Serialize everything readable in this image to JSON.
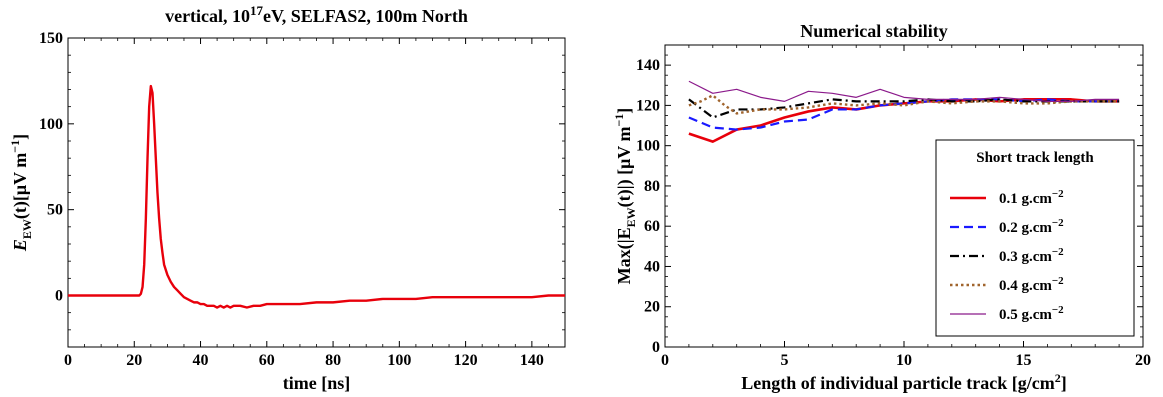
{
  "chart_data": [
    {
      "type": "line",
      "title": "vertical, 10",
      "title_sup": "17",
      "title_rest": "eV, SELFAS2, 100m North",
      "xlabel": "time [ns]",
      "ylabel_main": "E",
      "ylabel_sub": "EW",
      "ylabel_rest": "(t)[μV m",
      "ylabel_sup": "−1",
      "ylabel_end": "]",
      "xlim": [
        0,
        150
      ],
      "ylim": [
        -30,
        150
      ],
      "xticks": [
        0,
        20,
        40,
        60,
        80,
        100,
        120,
        140
      ],
      "yticks": [
        0,
        50,
        100,
        150
      ],
      "grid": false,
      "series": [
        {
          "color": "#e8000b",
          "style": "solid",
          "x": [
            0,
            5,
            10,
            15,
            20,
            21.5,
            22,
            22.5,
            23,
            23.5,
            24,
            24.5,
            25,
            25.5,
            26,
            26.5,
            27,
            27.5,
            28,
            28.5,
            29,
            30,
            31,
            32,
            33,
            34,
            35,
            36,
            37,
            38,
            39,
            40,
            41,
            42,
            43,
            44,
            45,
            46,
            47,
            48,
            49,
            50,
            52,
            54,
            56,
            58,
            60,
            65,
            70,
            75,
            80,
            85,
            90,
            95,
            100,
            105,
            110,
            115,
            120,
            125,
            130,
            135,
            140,
            145,
            150
          ],
          "y": [
            0,
            0,
            0,
            0,
            0,
            0,
            1,
            5,
            18,
            45,
            80,
            110,
            122,
            118,
            100,
            80,
            60,
            45,
            33,
            25,
            18,
            12,
            8,
            5,
            3,
            1,
            -1,
            -2,
            -3,
            -4,
            -4,
            -5,
            -5,
            -6,
            -6,
            -6,
            -7,
            -6,
            -7,
            -6,
            -7,
            -6,
            -6,
            -7,
            -6,
            -6,
            -5,
            -5,
            -5,
            -4,
            -4,
            -3,
            -3,
            -2,
            -2,
            -2,
            -1,
            -1,
            -1,
            -1,
            -1,
            -1,
            -1,
            0,
            0
          ]
        }
      ]
    },
    {
      "type": "line",
      "title": "Numerical stability",
      "xlabel_main": "Length of individual particle track [g/cm",
      "xlabel_sup": "2",
      "xlabel_end": "]",
      "ylabel_main": "Max(|E",
      "ylabel_sub": "EW",
      "ylabel_rest": "(t)|) [μV m",
      "ylabel_sup": "−1",
      "ylabel_end": "]",
      "xlim": [
        0,
        20
      ],
      "ylim": [
        0,
        150
      ],
      "xticks": [
        0,
        5,
        10,
        15,
        20
      ],
      "yticks": [
        0,
        20,
        40,
        60,
        80,
        100,
        120,
        140
      ],
      "grid": false,
      "legend": {
        "title": "Short track length",
        "placement": "right",
        "unit": " g.cm",
        "unit_sup": "−2"
      },
      "series": [
        {
          "name": "0.1",
          "color": "#e8000b",
          "style": "solid",
          "width": 2.6,
          "x": [
            1,
            2,
            3,
            4,
            5,
            6,
            7,
            8,
            9,
            10,
            11,
            12,
            13,
            14,
            15,
            16,
            17,
            18,
            19
          ],
          "y": [
            106,
            102,
            108,
            110,
            114,
            117,
            119,
            118,
            120,
            121,
            122,
            122,
            123,
            122,
            123,
            123,
            123,
            122,
            122
          ]
        },
        {
          "name": "0.2",
          "color": "#1a1aff",
          "style": "dashed",
          "width": 2.2,
          "x": [
            1,
            2,
            3,
            4,
            5,
            6,
            7,
            8,
            9,
            10,
            11,
            12,
            13,
            14,
            15,
            16,
            17,
            18,
            19
          ],
          "y": [
            114,
            109,
            108,
            109,
            112,
            113,
            118,
            118,
            120,
            121,
            122,
            123,
            123,
            123,
            122,
            123,
            122,
            122,
            122
          ]
        },
        {
          "name": "0.3",
          "color": "#000000",
          "style": "dashdot",
          "width": 2.2,
          "x": [
            1,
            2,
            3,
            4,
            5,
            6,
            7,
            8,
            9,
            10,
            11,
            12,
            13,
            14,
            15,
            16,
            17,
            18,
            19
          ],
          "y": [
            123,
            114,
            118,
            118,
            119,
            121,
            123,
            122,
            122,
            122,
            123,
            122,
            122,
            123,
            122,
            122,
            122,
            122,
            122
          ]
        },
        {
          "name": "0.4",
          "color": "#a0642d",
          "style": "dotted",
          "width": 2.4,
          "x": [
            1,
            1.5,
            2,
            2.5,
            3,
            4,
            5,
            6,
            7,
            8,
            9,
            10,
            11,
            12,
            13,
            14,
            15,
            16,
            17,
            18,
            19
          ],
          "y": [
            120,
            122,
            125,
            120,
            116,
            118,
            118,
            119,
            121,
            120,
            121,
            120,
            122,
            121,
            122,
            122,
            121,
            121,
            122,
            122,
            122
          ]
        },
        {
          "name": "0.5",
          "color": "#8b1a8b",
          "style": "solid",
          "width": 1.2,
          "x": [
            1,
            2,
            3,
            4,
            5,
            6,
            7,
            8,
            9,
            10,
            11,
            12,
            13,
            14,
            15,
            16,
            17,
            18,
            19
          ],
          "y": [
            132,
            126,
            128,
            124,
            122,
            127,
            126,
            124,
            128,
            124,
            123,
            123,
            123,
            124,
            123,
            122,
            122,
            123,
            123
          ]
        }
      ]
    }
  ]
}
